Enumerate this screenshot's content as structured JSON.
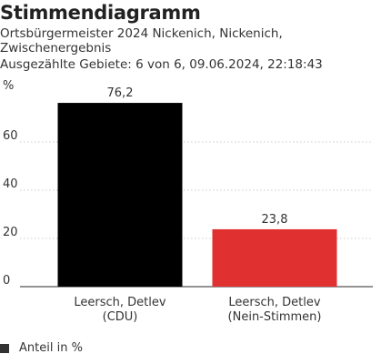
{
  "header": {
    "title": "Stimmendiagramm",
    "subtitle": "Ortsbürgermeister 2024 Nickenich, Nickenich, Zwischenergebnis",
    "meta": "Ausgezählte Gebiete: 6 von 6, 09.06.2024, 22:18:43"
  },
  "legend": {
    "label": "Anteil in %",
    "swatch_color": "#333333"
  },
  "chart_data": {
    "type": "bar",
    "title": "Stimmendiagramm",
    "ylabel": "%",
    "ylim": [
      0,
      80
    ],
    "yticks": [
      "0",
      "20",
      "40",
      "60"
    ],
    "grid": true,
    "categories": [
      [
        "Leersch, Detlev",
        "(CDU)"
      ],
      [
        "Leersch, Detlev",
        "(Nein-Stimmen)"
      ]
    ],
    "values": [
      76.2,
      23.8
    ],
    "value_labels": [
      "76,2",
      "23,8"
    ],
    "colors": [
      "#000000",
      "#e03030"
    ],
    "series": [
      {
        "name": "Anteil in %",
        "values": [
          76.2,
          23.8
        ]
      }
    ]
  }
}
